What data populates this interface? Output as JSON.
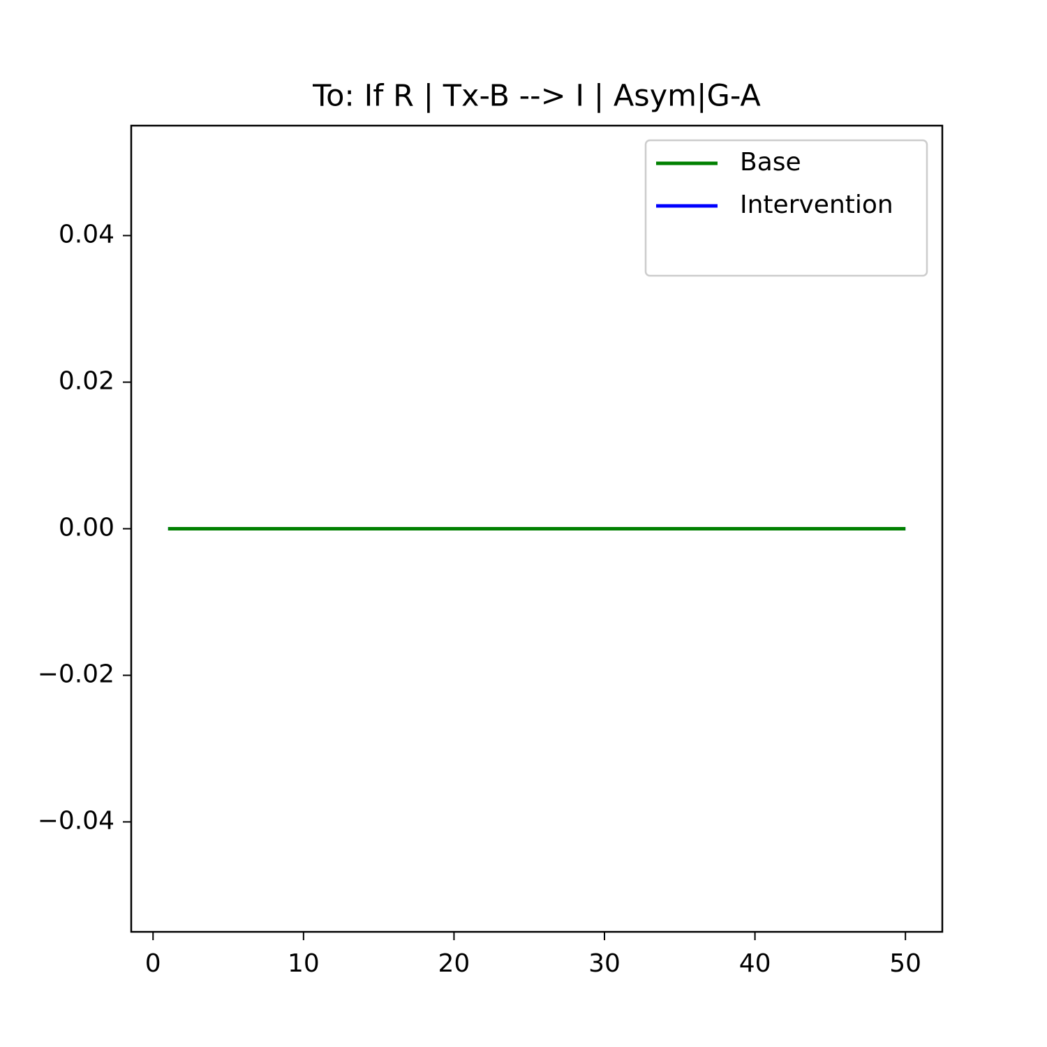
{
  "chart_data": {
    "type": "line",
    "title": "To: If R | Tx-B  --> I | Asym|G-A",
    "x": [
      1,
      2,
      3,
      4,
      5,
      6,
      7,
      8,
      9,
      10,
      11,
      12,
      13,
      14,
      15,
      16,
      17,
      18,
      19,
      20,
      21,
      22,
      23,
      24,
      25,
      26,
      27,
      28,
      29,
      30,
      31,
      32,
      33,
      34,
      35,
      36,
      37,
      38,
      39,
      40,
      41,
      42,
      43,
      44,
      45,
      46,
      47,
      48,
      49,
      50
    ],
    "series": [
      {
        "name": "Base",
        "color": "#008000",
        "values": [
          0,
          0,
          0,
          0,
          0,
          0,
          0,
          0,
          0,
          0,
          0,
          0,
          0,
          0,
          0,
          0,
          0,
          0,
          0,
          0,
          0,
          0,
          0,
          0,
          0,
          0,
          0,
          0,
          0,
          0,
          0,
          0,
          0,
          0,
          0,
          0,
          0,
          0,
          0,
          0,
          0,
          0,
          0,
          0,
          0,
          0,
          0,
          0,
          0,
          0
        ]
      },
      {
        "name": "Intervention",
        "color": "#0000ff",
        "values": [
          0,
          0,
          0,
          0,
          0,
          0,
          0,
          0,
          0,
          0,
          0,
          0,
          0,
          0,
          0,
          0,
          0,
          0,
          0,
          0,
          0,
          0,
          0,
          0,
          0,
          0,
          0,
          0,
          0,
          0,
          0,
          0,
          0,
          0,
          0,
          0,
          0,
          0,
          0,
          0,
          0,
          0,
          0,
          0,
          0,
          0,
          0,
          0,
          0,
          0
        ]
      }
    ],
    "xlim": [
      -1.45,
      52.45
    ],
    "xticks": [
      0,
      10,
      20,
      30,
      40,
      50
    ],
    "ylim": [
      -0.055,
      0.055
    ],
    "yticks": [
      {
        "value": -0.04,
        "label": "−0.04"
      },
      {
        "value": -0.02,
        "label": "−0.02"
      },
      {
        "value": 0,
        "label": "0.00"
      },
      {
        "value": 0.02,
        "label": "0.02"
      },
      {
        "value": 0.04,
        "label": "0.04"
      }
    ],
    "legend": "upper right"
  }
}
